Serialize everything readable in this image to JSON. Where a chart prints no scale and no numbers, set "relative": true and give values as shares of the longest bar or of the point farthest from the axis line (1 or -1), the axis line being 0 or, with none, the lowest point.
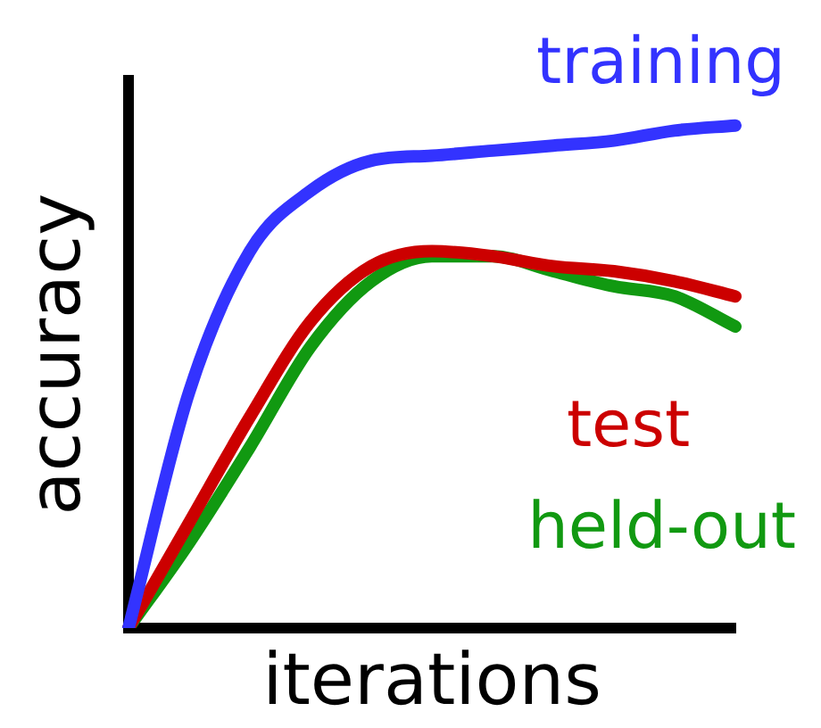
{
  "chart_data": {
    "type": "line",
    "relative": true,
    "xlabel": "iterations",
    "ylabel": "accuracy",
    "legend": false,
    "grid": false,
    "marker": "none",
    "line_style": "solid",
    "tick_labels": false,
    "categories": [
      null,
      null,
      null,
      null,
      null,
      null,
      null,
      null,
      null,
      null,
      null
    ],
    "series": [
      {
        "name": "training",
        "color": "#3333ff",
        "values": [
          0,
          0.47,
          0.75,
          0.87,
          0.93,
          0.94,
          0.95,
          0.96,
          0.97,
          0.99,
          1
        ]
      },
      {
        "name": "test",
        "color": "#cc0000",
        "values": [
          0,
          0.21,
          0.42,
          0.61,
          0.72,
          0.75,
          0.74,
          0.72,
          0.71,
          0.69,
          0.66
        ]
      },
      {
        "name": "held-out",
        "color": "#119911",
        "values": [
          0,
          0.17,
          0.36,
          0.56,
          0.69,
          0.74,
          0.74,
          0.71,
          0.68,
          0.66,
          0.6
        ]
      }
    ]
  }
}
